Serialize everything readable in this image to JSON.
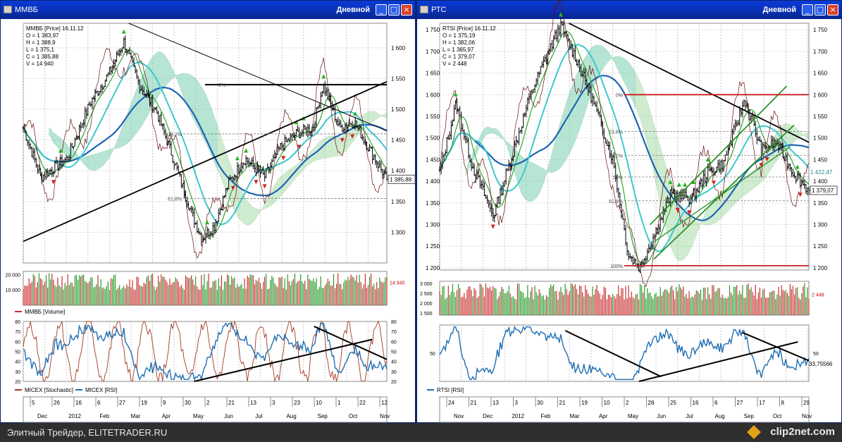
{
  "left": {
    "title": "ММВБ",
    "period": "Дневной",
    "info": [
      "ММВБ [Price] 16.11.12",
      "O = 1 383,97",
      "H = 1 388,9",
      "L = 1 375,1",
      "C = 1 385,88",
      "V = 14 940"
    ],
    "price_axis": [
      "1 600",
      "1 550",
      "1 500",
      "1 450",
      "1 400",
      "1 350",
      "1 300"
    ],
    "last_price": "1 385,88",
    "fib_labels": [
      "0%",
      "38,2%",
      "61,8%"
    ],
    "volume_axis": [
      "20 000",
      "10 000"
    ],
    "volume_last": "14 940",
    "volume_legend": "ММВБ [Volume]",
    "osc_axis": [
      "80",
      "70",
      "60",
      "50",
      "40",
      "30",
      "20"
    ],
    "osc_legend_1": "MICEX [Stochastic]",
    "osc_legend_2": "MICEX [RSI]",
    "days": [
      "5",
      "26",
      "16",
      "6",
      "27",
      "19",
      "9",
      "30",
      "2",
      "21",
      "13",
      "3",
      "23",
      "10",
      "1",
      "22",
      "12"
    ],
    "months": [
      "Dec",
      "2012",
      "Feb",
      "Mar",
      "Apr",
      "May",
      "Jun",
      "Jul",
      "Aug",
      "Sep",
      "Oct",
      "Nov"
    ]
  },
  "right": {
    "title": "РТС",
    "period": "Дневной",
    "info": [
      "RTSI [Price] 16.11.12",
      "O = 1 375,19",
      "H = 1 382,06",
      "L = 1 365,97",
      "C = 1 379,07",
      "V = 2 448"
    ],
    "price_axis": [
      "1 750",
      "1 700",
      "1 650",
      "1 600",
      "1 550",
      "1 500",
      "1 450",
      "1 400",
      "1 350",
      "1 300",
      "1 250",
      "1 200"
    ],
    "last_price": "1 379,07",
    "secondary_label": "1 422,47",
    "fib_labels": [
      "0%",
      "23,6%",
      "38,2%",
      "50%",
      "61,8%",
      "100%"
    ],
    "volume_axis": [
      "3 000",
      "2 500",
      "2 000",
      "1 500"
    ],
    "volume_last": "2 448",
    "osc_axis": [
      "50"
    ],
    "rsi_last": "33,75566",
    "osc_legend": "RTSI [RSI]",
    "days": [
      "24",
      "21",
      "13",
      "3",
      "30",
      "21",
      "19",
      "10",
      "2",
      "28",
      "25",
      "16",
      "6",
      "27",
      "17",
      "8",
      "29"
    ],
    "months": [
      "Nov",
      "Dec",
      "2012",
      "Feb",
      "Mar",
      "Apr",
      "May",
      "Jun",
      "Jul",
      "Aug",
      "Sep",
      "Oct",
      "Nov"
    ]
  },
  "status_text": "Элитный Трейдер, ELITETRADER.RU",
  "brand": "clip2net.com",
  "colors": {
    "titlebar": "#0a3bd8",
    "bull_marker": "#22b522",
    "bear_marker": "#d42020",
    "ma_blue": "#1e64b4",
    "ma_cyan": "#3cc8d2",
    "cloud_green": "#7ccb7c",
    "cloud_cyan": "#66d0e0",
    "stoch": "#a23a1e",
    "rsi": "#1e6eb4",
    "trend": "#000000",
    "fib_red": "#c81e1e",
    "channel": "#1a8a1a"
  },
  "chart_data": [
    {
      "type": "line",
      "title": "ММВБ [Price] 16.11.12",
      "ohlc_last": {
        "open": 1383.97,
        "high": 1388.9,
        "low": 1375.1,
        "close": 1385.88,
        "volume": 14940
      },
      "ylim": [
        1250,
        1640
      ],
      "x_start": "2011-11-28",
      "x_end": "2012-11-16",
      "series": [
        {
          "name": "ММВБ [Price]",
          "x": [
            "2011-11-28",
            "2011-12-15",
            "2012-01-10",
            "2012-02-01",
            "2012-02-20",
            "2012-03-05",
            "2012-03-20",
            "2012-04-05",
            "2012-04-20",
            "2012-05-10",
            "2012-05-20",
            "2012-06-01",
            "2012-06-15",
            "2012-07-01",
            "2012-07-20",
            "2012-08-05",
            "2012-08-20",
            "2012-09-05",
            "2012-09-15",
            "2012-10-01",
            "2012-10-15",
            "2012-11-01",
            "2012-11-16"
          ],
          "values": [
            1470,
            1390,
            1420,
            1510,
            1560,
            1610,
            1540,
            1500,
            1430,
            1330,
            1290,
            1310,
            1380,
            1420,
            1390,
            1440,
            1460,
            1470,
            1540,
            1470,
            1480,
            1430,
            1386
          ]
        }
      ],
      "volume": {
        "ylim": [
          0,
          22000
        ],
        "last": 14940
      },
      "oscillators": {
        "ylim": [
          20,
          80
        ],
        "stochastic_last": 30,
        "rsi_last": 38
      }
    },
    {
      "type": "line",
      "title": "RTSI [Price] 16.11.12",
      "ohlc_last": {
        "open": 1375.19,
        "high": 1382.06,
        "low": 1365.97,
        "close": 1379.07,
        "volume": 2448
      },
      "ylim": [
        1195,
        1765
      ],
      "x_start": "2011-11-24",
      "x_end": "2012-11-16",
      "series": [
        {
          "name": "RTSI [Price]",
          "x": [
            "2011-11-24",
            "2011-12-10",
            "2011-12-25",
            "2012-01-15",
            "2012-02-01",
            "2012-02-20",
            "2012-03-05",
            "2012-03-20",
            "2012-04-05",
            "2012-04-20",
            "2012-05-10",
            "2012-05-25",
            "2012-06-05",
            "2012-06-20",
            "2012-07-05",
            "2012-07-25",
            "2012-08-10",
            "2012-08-25",
            "2012-09-15",
            "2012-10-01",
            "2012-10-15",
            "2012-11-01",
            "2012-11-16"
          ],
          "values": [
            1420,
            1580,
            1440,
            1320,
            1450,
            1600,
            1680,
            1760,
            1680,
            1590,
            1450,
            1230,
            1200,
            1280,
            1370,
            1360,
            1420,
            1440,
            1590,
            1470,
            1490,
            1420,
            1379
          ]
        }
      ],
      "volume": {
        "ylim": [
          1400,
          3100
        ],
        "last": 2448
      },
      "rsi": {
        "last": 33.75566
      }
    }
  ]
}
